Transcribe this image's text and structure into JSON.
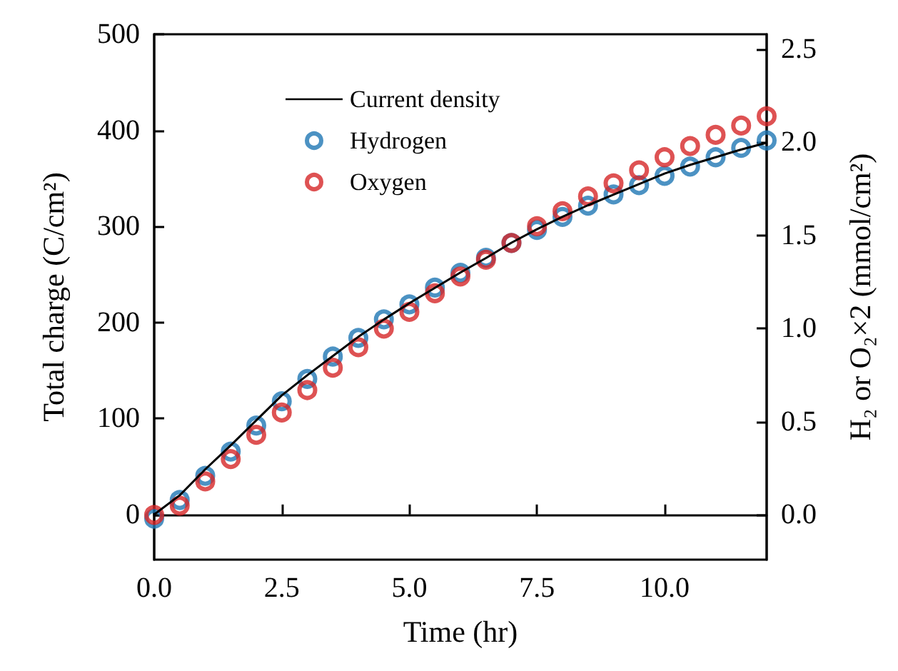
{
  "chart_data": {
    "type": "line",
    "xlabel": "Time (hr)",
    "ylabel": "Total charge (C/cm²)",
    "y2label": "H₂ or O₂×2 (mmol/cm²)",
    "x": [
      0,
      0.5,
      1,
      1.5,
      2,
      2.5,
      3,
      3.5,
      4,
      4.5,
      5,
      5.5,
      6,
      6.5,
      7,
      7.5,
      8,
      8.5,
      9,
      9.5,
      10,
      10.5,
      11,
      11.5,
      12
    ],
    "series": [
      {
        "name": "Current density",
        "color": "#000000",
        "marker": "none",
        "values": [
          0,
          20,
          47,
          72,
          98,
          124,
          145,
          165,
          185,
          203,
          220,
          236,
          252,
          267,
          283,
          297,
          310,
          322,
          333,
          344,
          355,
          364,
          372,
          380,
          387
        ]
      },
      {
        "name": "Hydrogen",
        "type": "scatter",
        "axis": "y2",
        "color": "#1f77b4",
        "marker": "circle",
        "values": [
          -0.02,
          0.08,
          0.21,
          0.34,
          0.48,
          0.61,
          0.73,
          0.85,
          0.95,
          1.05,
          1.13,
          1.22,
          1.3,
          1.38,
          1.46,
          1.53,
          1.6,
          1.66,
          1.72,
          1.77,
          1.82,
          1.87,
          1.92,
          1.97,
          2.01
        ]
      },
      {
        "name": "Oxygen",
        "type": "scatter",
        "axis": "y2",
        "color": "#d62728",
        "marker": "circle",
        "values": [
          0.0,
          0.05,
          0.18,
          0.3,
          0.43,
          0.55,
          0.67,
          0.79,
          0.9,
          1.0,
          1.09,
          1.19,
          1.28,
          1.37,
          1.46,
          1.55,
          1.63,
          1.71,
          1.78,
          1.85,
          1.92,
          1.98,
          2.04,
          2.09,
          2.14
        ]
      }
    ],
    "xlim": [
      0,
      12
    ],
    "xticks": [
      {
        "value": 0,
        "label": "0.0"
      },
      {
        "value": 2.5,
        "label": "2.5"
      },
      {
        "value": 5,
        "label": "5.0"
      },
      {
        "value": 7.5,
        "label": "7.5"
      },
      {
        "value": 10,
        "label": "10.0"
      }
    ],
    "ylim": [
      -47,
      500
    ],
    "yticks": [
      0,
      100,
      200,
      300,
      400,
      500
    ],
    "y2lim": [
      -0.24,
      2.58
    ],
    "y2ticks": [
      {
        "value": 0,
        "label": "0.0"
      },
      {
        "value": 0.5,
        "label": "0.5"
      },
      {
        "value": 1,
        "label": "1.0"
      },
      {
        "value": 1.5,
        "label": "1.5"
      },
      {
        "value": 2,
        "label": "2.0"
      },
      {
        "value": 2.5,
        "label": "2.5"
      }
    ],
    "legend": "top left"
  }
}
